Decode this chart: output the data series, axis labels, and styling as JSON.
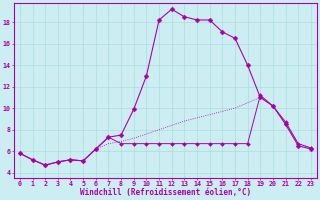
{
  "xlabel": "Windchill (Refroidissement éolien,°C)",
  "bg_color": "#cceef2",
  "grid_color": "#aadddd",
  "line_color": "#aa00aa",
  "xlim": [
    -0.5,
    23.5
  ],
  "ylim": [
    3.5,
    19.8
  ],
  "yticks": [
    4,
    6,
    8,
    10,
    12,
    14,
    16,
    18
  ],
  "xticks": [
    0,
    1,
    2,
    3,
    4,
    5,
    6,
    7,
    8,
    9,
    10,
    11,
    12,
    13,
    14,
    15,
    16,
    17,
    18,
    19,
    20,
    21,
    22,
    23
  ],
  "s1_x": [
    0,
    1,
    2,
    3,
    4,
    5,
    6,
    7,
    8,
    9,
    10,
    11,
    12,
    13,
    14,
    15,
    16,
    17,
    18,
    19,
    20,
    21,
    22,
    23
  ],
  "s1_y": [
    5.8,
    5.2,
    4.7,
    5.0,
    5.2,
    5.1,
    6.2,
    7.3,
    7.5,
    9.9,
    13.0,
    18.2,
    19.2,
    18.5,
    18.2,
    18.2,
    17.1,
    16.5,
    14.0,
    11.0,
    10.2,
    8.5,
    6.5,
    6.2
  ],
  "s2_x": [
    0,
    1,
    2,
    3,
    4,
    5,
    6,
    7,
    8,
    9,
    10,
    11,
    12,
    13,
    14,
    15,
    16,
    17,
    18,
    19,
    20,
    21,
    22,
    23
  ],
  "s2_y": [
    5.8,
    5.2,
    4.7,
    5.0,
    5.2,
    5.1,
    6.2,
    7.3,
    6.7,
    6.7,
    6.7,
    6.7,
    6.7,
    6.7,
    6.7,
    6.7,
    6.7,
    6.7,
    6.7,
    11.2,
    10.2,
    8.7,
    6.7,
    6.3
  ],
  "s3_x": [
    0,
    1,
    2,
    3,
    4,
    5,
    6,
    7,
    8,
    9,
    10,
    11,
    12,
    13,
    14,
    15,
    16,
    17,
    18,
    19,
    20,
    21,
    22,
    23
  ],
  "s3_y": [
    5.8,
    5.2,
    4.7,
    5.0,
    5.2,
    5.1,
    6.2,
    6.7,
    6.9,
    7.2,
    7.6,
    8.0,
    8.4,
    8.8,
    9.1,
    9.4,
    9.7,
    10.0,
    10.5,
    11.0,
    10.2,
    8.7,
    6.7,
    6.3
  ]
}
